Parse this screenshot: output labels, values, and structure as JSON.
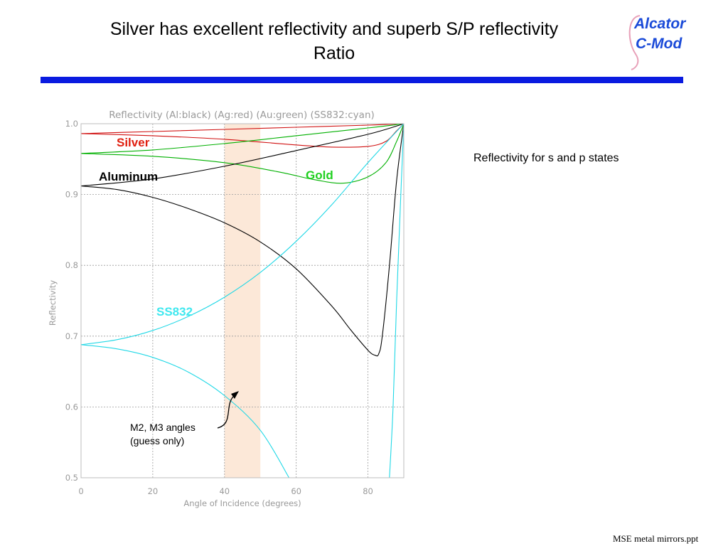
{
  "slide": {
    "title_line1": "Silver has excellent reflectivity and superb S/P reflectivity",
    "title_line2": "Ratio",
    "logo_line1": "Alcator",
    "logo_line2": "C-Mod",
    "side_note": "Reflectivity for s and p states",
    "footer": "MSE metal mirrors.ppt",
    "annotation_line1": "M2, M3 angles",
    "annotation_line2": "(guess only)",
    "accent_color": "#0a1be0"
  },
  "chart_data": {
    "type": "line",
    "title": "Reflectivity (Al:black) (Ag:red) (Au:green) (SS832:cyan)",
    "xlabel": "Angle of Incidence (degrees)",
    "ylabel": "Reflectivity",
    "xlim": [
      0,
      90
    ],
    "ylim": [
      0.5,
      1.0
    ],
    "xticks": [
      "0",
      "20",
      "40",
      "60",
      "80"
    ],
    "yticks": [
      "0.5",
      "0.6",
      "0.7",
      "0.8",
      "0.9",
      "1.0"
    ],
    "grid": true,
    "highlight_band": {
      "x_from": 40,
      "x_to": 50,
      "color": "#fce8d8"
    },
    "curve_labels": [
      {
        "text": "Silver",
        "color": "#e02010"
      },
      {
        "text": "Aluminum",
        "color": "#000000"
      },
      {
        "text": "Gold",
        "color": "#20d020"
      },
      {
        "text": "SS832",
        "color": "#40e8ef"
      }
    ],
    "series": [
      {
        "color": "#d01010",
        "x": [
          0,
          20,
          40,
          60,
          80,
          90
        ],
        "y": [
          0.986,
          0.989,
          0.992,
          0.995,
          0.998,
          1.0
        ]
      },
      {
        "color": "#d01010",
        "x": [
          0,
          20,
          40,
          60,
          70,
          80,
          85,
          88,
          90
        ],
        "y": [
          0.986,
          0.983,
          0.978,
          0.97,
          0.967,
          0.968,
          0.975,
          0.99,
          1.0
        ]
      },
      {
        "color": "#00b000",
        "x": [
          0,
          20,
          40,
          60,
          80,
          90
        ],
        "y": [
          0.958,
          0.963,
          0.972,
          0.983,
          0.994,
          1.0
        ]
      },
      {
        "color": "#00b000",
        "x": [
          0,
          20,
          40,
          55,
          65,
          73,
          80,
          85,
          88,
          90
        ],
        "y": [
          0.958,
          0.954,
          0.945,
          0.932,
          0.921,
          0.916,
          0.925,
          0.945,
          0.975,
          1.0
        ]
      },
      {
        "color": "#000000",
        "x": [
          0,
          20,
          40,
          60,
          80,
          90
        ],
        "y": [
          0.912,
          0.922,
          0.94,
          0.962,
          0.985,
          1.0
        ]
      },
      {
        "color": "#000000",
        "x": [
          0,
          10,
          20,
          30,
          40,
          50,
          60,
          70,
          75,
          80,
          82,
          83,
          84,
          86,
          88,
          90
        ],
        "y": [
          0.912,
          0.907,
          0.896,
          0.88,
          0.86,
          0.833,
          0.795,
          0.742,
          0.71,
          0.68,
          0.673,
          0.675,
          0.7,
          0.8,
          0.92,
          1.0
        ]
      },
      {
        "color": "#20d8e6",
        "x": [
          0,
          10,
          20,
          30,
          40,
          50,
          60,
          70,
          80,
          90
        ],
        "y": [
          0.688,
          0.695,
          0.708,
          0.728,
          0.755,
          0.79,
          0.834,
          0.886,
          0.945,
          1.0
        ]
      },
      {
        "color": "#20d8e6",
        "x": [
          0,
          10,
          20,
          30,
          40,
          50,
          58
        ],
        "y": [
          0.688,
          0.682,
          0.67,
          0.649,
          0.616,
          0.567,
          0.5
        ]
      },
      {
        "color": "#20d8e6",
        "x": [
          86,
          87,
          88,
          89,
          90
        ],
        "y": [
          0.5,
          0.6,
          0.75,
          0.88,
          1.0
        ]
      }
    ]
  }
}
